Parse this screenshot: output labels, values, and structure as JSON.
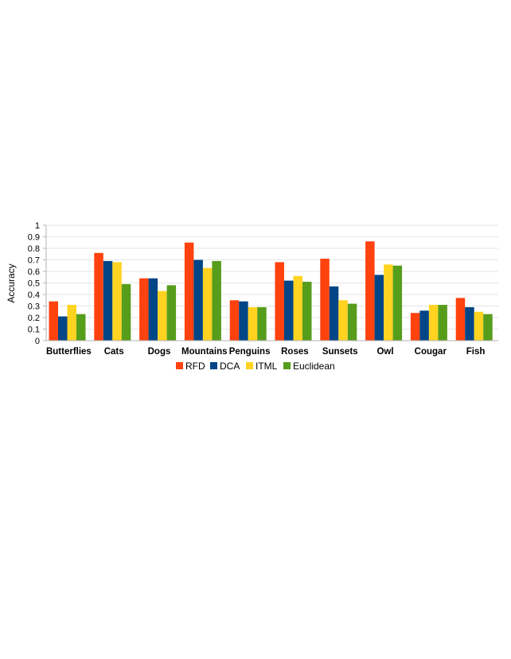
{
  "chart_data": {
    "type": "bar",
    "title": "",
    "xlabel": "",
    "ylabel": "Accuracy",
    "ylim": [
      0,
      1
    ],
    "yticks": [
      0,
      0.1,
      0.2,
      0.3,
      0.4,
      0.5,
      0.6,
      0.7,
      0.8,
      0.9,
      1
    ],
    "ytick_labels": [
      "0",
      "0.1",
      "0.2",
      "0.3",
      "0.4",
      "0.5",
      "0.6",
      "0.7",
      "0.8",
      "0.9",
      "1"
    ],
    "grid": true,
    "legend_position": "bottom",
    "categories": [
      "Butterflies",
      "Cats",
      "Dogs",
      "Mountains",
      "Penguins",
      "Roses",
      "Sunsets",
      "Owl",
      "Cougar",
      "Fish"
    ],
    "series": [
      {
        "name": "RFD",
        "color": "#ff420e",
        "values": [
          0.34,
          0.76,
          0.54,
          0.85,
          0.35,
          0.68,
          0.71,
          0.86,
          0.24,
          0.37
        ]
      },
      {
        "name": "DCA",
        "color": "#004586",
        "values": [
          0.21,
          0.69,
          0.54,
          0.7,
          0.34,
          0.52,
          0.47,
          0.57,
          0.26,
          0.29
        ]
      },
      {
        "name": "ITML",
        "color": "#ffd320",
        "values": [
          0.31,
          0.68,
          0.43,
          0.63,
          0.29,
          0.56,
          0.35,
          0.66,
          0.31,
          0.25
        ]
      },
      {
        "name": "Euclidean",
        "color": "#579d1c",
        "values": [
          0.23,
          0.49,
          0.48,
          0.69,
          0.29,
          0.51,
          0.32,
          0.65,
          0.31,
          0.23
        ]
      }
    ]
  }
}
